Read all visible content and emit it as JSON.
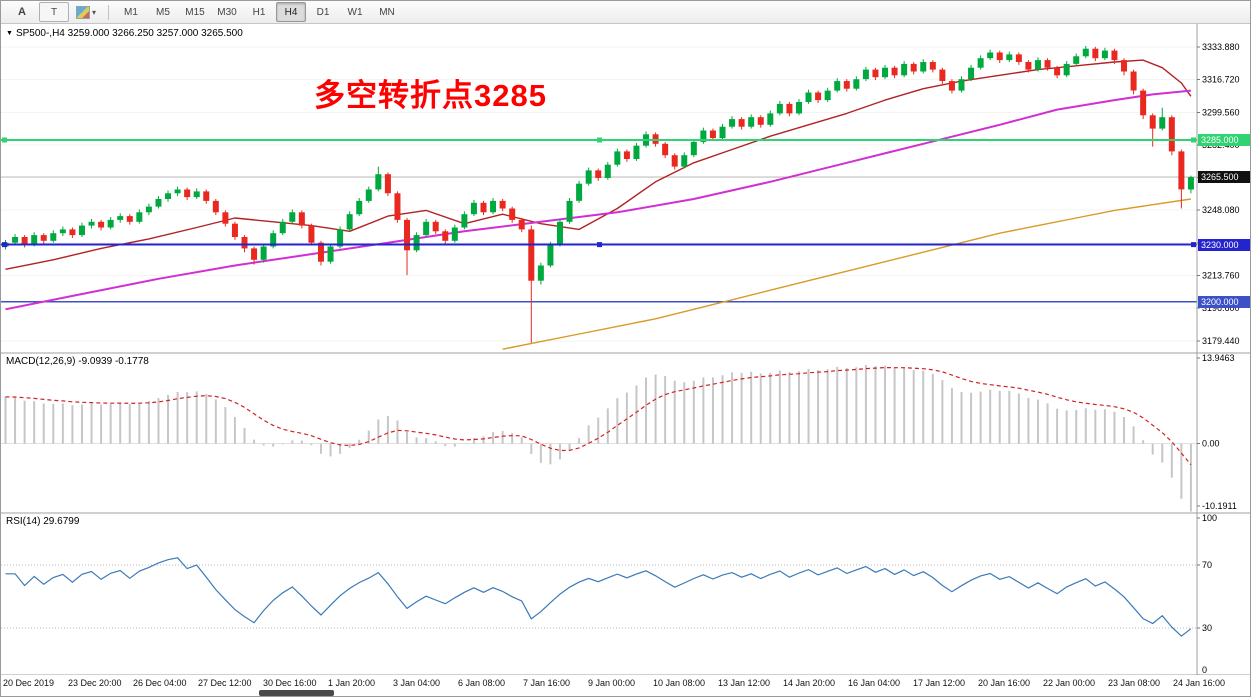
{
  "toolbar": {
    "buttons": [
      {
        "label": "A"
      },
      {
        "label": "T"
      }
    ],
    "caret": "▾",
    "timeframes": [
      "M1",
      "M5",
      "M15",
      "M30",
      "H1",
      "H4",
      "D1",
      "W1",
      "MN"
    ],
    "active_timeframe": "H4"
  },
  "chart": {
    "collapse_icon": "▼",
    "symbol_info": "SP500-,H4 3259.000 3266.250 3257.000 3265.500",
    "annotation": "多空转折点3285",
    "annotation_color": "#fe0000"
  },
  "indicators": {
    "macd_label": "MACD(12,26,9) -9.0939 -0.1778",
    "rsi_label": "RSI(14) 29.6799"
  },
  "chart_data": {
    "type": "candlestick",
    "symbol": "SP500-",
    "timeframe": "H4",
    "last_bar": {
      "open": 3259.0,
      "high": 3266.25,
      "low": 3257.0,
      "close": 3265.5
    },
    "y_range": [
      3173,
      3346
    ],
    "up_color": "#00a93f",
    "down_color": "#e9281f",
    "y_ticks": [
      "3333.880",
      "3316.720",
      "3299.560",
      "3282.400",
      "3265.240",
      "3248.080",
      "3230.920",
      "3213.760",
      "3196.600",
      "3179.440"
    ],
    "x_labels": [
      "20 Dec 2019",
      "23 Dec 20:00",
      "26 Dec 04:00",
      "27 Dec 12:00",
      "30 Dec 16:00",
      "1 Jan 20:00",
      "3 Jan 04:00",
      "6 Jan 08:00",
      "7 Jan 16:00",
      "9 Jan 00:00",
      "10 Jan 08:00",
      "13 Jan 12:00",
      "14 Jan 20:00",
      "16 Jan 04:00",
      "17 Jan 12:00",
      "20 Jan 16:00",
      "22 Jan 00:00",
      "23 Jan 08:00",
      "24 Jan 16:00"
    ],
    "candles": [
      [
        3229,
        3232.5,
        3227.5,
        3231
      ],
      [
        3231,
        3235.5,
        3230,
        3234
      ],
      [
        3234,
        3235,
        3228.5,
        3230
      ],
      [
        3230,
        3236.5,
        3229,
        3235
      ],
      [
        3235,
        3236,
        3230.5,
        3232
      ],
      [
        3232,
        3237.5,
        3231,
        3236
      ],
      [
        3236,
        3239.5,
        3234.5,
        3238
      ],
      [
        3238,
        3239,
        3233.5,
        3235
      ],
      [
        3235,
        3241.5,
        3234,
        3240
      ],
      [
        3240,
        3243.5,
        3238.5,
        3242
      ],
      [
        3242,
        3243,
        3237.5,
        3239
      ],
      [
        3239,
        3244.5,
        3238,
        3243
      ],
      [
        3243,
        3246.5,
        3241.5,
        3245
      ],
      [
        3245,
        3246,
        3240.5,
        3242
      ],
      [
        3242,
        3248.5,
        3241,
        3247
      ],
      [
        3247,
        3251.5,
        3245.5,
        3250
      ],
      [
        3250,
        3255.5,
        3249,
        3254
      ],
      [
        3254,
        3258.5,
        3252.5,
        3257
      ],
      [
        3257,
        3260.5,
        3255.5,
        3259
      ],
      [
        3259,
        3260,
        3253.5,
        3255
      ],
      [
        3255,
        3259.5,
        3254,
        3258
      ],
      [
        3258,
        3259,
        3251.5,
        3253
      ],
      [
        3253,
        3254,
        3245.5,
        3247
      ],
      [
        3247,
        3248,
        3239.5,
        3241
      ],
      [
        3241,
        3242,
        3232.5,
        3234
      ],
      [
        3234,
        3235,
        3226,
        3228
      ],
      [
        3228,
        3229,
        3219.5,
        3222
      ],
      [
        3222,
        3230.5,
        3220.5,
        3229
      ],
      [
        3229,
        3237.5,
        3228,
        3236
      ],
      [
        3236,
        3243.5,
        3235,
        3242
      ],
      [
        3242,
        3248.5,
        3241,
        3247
      ],
      [
        3247,
        3248,
        3238.5,
        3240
      ],
      [
        3240,
        3241,
        3229.5,
        3231
      ],
      [
        3231,
        3232,
        3219,
        3221
      ],
      [
        3221,
        3230.5,
        3220,
        3229
      ],
      [
        3229,
        3239.5,
        3228,
        3238
      ],
      [
        3238,
        3247.5,
        3237,
        3246
      ],
      [
        3246,
        3254.5,
        3245,
        3253
      ],
      [
        3253,
        3260.5,
        3252,
        3259
      ],
      [
        3259,
        3271,
        3258,
        3267
      ],
      [
        3267,
        3268,
        3255.5,
        3257
      ],
      [
        3257,
        3258,
        3241.5,
        3243
      ],
      [
        3243,
        3244,
        3214,
        3227
      ],
      [
        3227,
        3236.5,
        3226,
        3235
      ],
      [
        3235,
        3243.5,
        3234,
        3242
      ],
      [
        3242,
        3243,
        3235.5,
        3237
      ],
      [
        3237,
        3238,
        3230.5,
        3232
      ],
      [
        3232,
        3240.5,
        3231,
        3239
      ],
      [
        3239,
        3247.5,
        3238,
        3246
      ],
      [
        3246,
        3253.5,
        3245,
        3252
      ],
      [
        3252,
        3253,
        3245.5,
        3247
      ],
      [
        3247,
        3254.5,
        3246,
        3253
      ],
      [
        3253,
        3254,
        3247.5,
        3249
      ],
      [
        3249,
        3250,
        3241.5,
        3243
      ],
      [
        3243,
        3244,
        3236.5,
        3238
      ],
      [
        3238,
        3240,
        3178.4,
        3211
      ],
      [
        3211,
        3220.5,
        3209,
        3219
      ],
      [
        3219,
        3231.5,
        3218,
        3230
      ],
      [
        3230,
        3243.5,
        3229,
        3242
      ],
      [
        3242,
        3254.5,
        3241,
        3253
      ],
      [
        3253,
        3263.5,
        3252,
        3262
      ],
      [
        3262,
        3270.5,
        3261,
        3269
      ],
      [
        3269,
        3270,
        3263.5,
        3265
      ],
      [
        3265,
        3273.5,
        3264,
        3272
      ],
      [
        3272,
        3280.5,
        3271,
        3279
      ],
      [
        3279,
        3280,
        3273.5,
        3275
      ],
      [
        3275,
        3283.5,
        3274,
        3282
      ],
      [
        3282,
        3289.5,
        3281,
        3288
      ],
      [
        3288,
        3289,
        3281.5,
        3283
      ],
      [
        3283,
        3284,
        3275.5,
        3277
      ],
      [
        3277,
        3278,
        3269.5,
        3271
      ],
      [
        3271,
        3278.5,
        3270,
        3277
      ],
      [
        3277,
        3285.5,
        3276,
        3284
      ],
      [
        3284,
        3291.5,
        3283,
        3290
      ],
      [
        3290,
        3291,
        3284.5,
        3286
      ],
      [
        3286,
        3293.5,
        3285,
        3292
      ],
      [
        3292,
        3297.5,
        3291,
        3296
      ],
      [
        3296,
        3297,
        3290.5,
        3292
      ],
      [
        3292,
        3298.5,
        3291,
        3297
      ],
      [
        3297,
        3298,
        3291.5,
        3293
      ],
      [
        3293,
        3300.5,
        3292,
        3299
      ],
      [
        3299,
        3305.5,
        3298,
        3304
      ],
      [
        3304,
        3305,
        3297.5,
        3299
      ],
      [
        3299,
        3306.5,
        3298,
        3305
      ],
      [
        3305,
        3311.5,
        3304,
        3310
      ],
      [
        3310,
        3311,
        3304.5,
        3306
      ],
      [
        3306,
        3312.5,
        3305,
        3311
      ],
      [
        3311,
        3317.5,
        3310,
        3316
      ],
      [
        3316,
        3317,
        3310.5,
        3312
      ],
      [
        3312,
        3318.5,
        3311,
        3317
      ],
      [
        3317,
        3323.5,
        3316,
        3322
      ],
      [
        3322,
        3323,
        3316.5,
        3318
      ],
      [
        3318,
        3324.5,
        3317,
        3323
      ],
      [
        3323,
        3324,
        3317.5,
        3319
      ],
      [
        3319,
        3326.5,
        3318,
        3325
      ],
      [
        3325,
        3326,
        3319.5,
        3321
      ],
      [
        3321,
        3327.5,
        3320,
        3326
      ],
      [
        3326,
        3327,
        3320.5,
        3322
      ],
      [
        3322,
        3323,
        3314.5,
        3316
      ],
      [
        3316,
        3317,
        3309.5,
        3311
      ],
      [
        3311,
        3318.5,
        3310,
        3317
      ],
      [
        3317,
        3324.5,
        3316,
        3323
      ],
      [
        3323,
        3329.5,
        3322,
        3328
      ],
      [
        3328,
        3332.5,
        3327,
        3331
      ],
      [
        3331,
        3332,
        3325.5,
        3327
      ],
      [
        3327,
        3331.5,
        3326,
        3330
      ],
      [
        3330,
        3331,
        3324.5,
        3326
      ],
      [
        3326,
        3327,
        3320.5,
        3322
      ],
      [
        3322,
        3328.5,
        3321,
        3327
      ],
      [
        3327,
        3328,
        3321.5,
        3323
      ],
      [
        3323,
        3324,
        3317.5,
        3319
      ],
      [
        3319,
        3326.5,
        3318,
        3325
      ],
      [
        3325,
        3330.5,
        3324,
        3329
      ],
      [
        3329,
        3334.5,
        3328,
        3333
      ],
      [
        3333,
        3334,
        3326.5,
        3328
      ],
      [
        3328,
        3333.5,
        3327,
        3332
      ],
      [
        3332,
        3333,
        3325,
        3327
      ],
      [
        3327,
        3328,
        3319,
        3321
      ],
      [
        3321,
        3322,
        3309,
        3311
      ],
      [
        3311,
        3312,
        3296,
        3298
      ],
      [
        3298,
        3299,
        3281.5,
        3291
      ],
      [
        3291,
        3302,
        3290,
        3297
      ],
      [
        3297,
        3298,
        3277,
        3279
      ],
      [
        3279,
        3280,
        3249,
        3259
      ],
      [
        3259,
        3266.25,
        3257,
        3265.5
      ]
    ],
    "moving_averages": [
      {
        "name": "ma-fast",
        "color": "#b22222",
        "width": 1.4,
        "points": [
          [
            0,
            3217
          ],
          [
            5,
            3222
          ],
          [
            10,
            3228
          ],
          [
            15,
            3233
          ],
          [
            20,
            3239
          ],
          [
            24,
            3244
          ],
          [
            28,
            3242
          ],
          [
            32,
            3240
          ],
          [
            36,
            3237
          ],
          [
            40,
            3245
          ],
          [
            44,
            3248
          ],
          [
            48,
            3241
          ],
          [
            52,
            3246
          ],
          [
            56,
            3241
          ],
          [
            60,
            3238
          ],
          [
            64,
            3249
          ],
          [
            68,
            3263
          ],
          [
            72,
            3273
          ],
          [
            76,
            3280
          ],
          [
            80,
            3287
          ],
          [
            84,
            3293
          ],
          [
            88,
            3299
          ],
          [
            92,
            3306
          ],
          [
            96,
            3312
          ],
          [
            100,
            3316
          ],
          [
            104,
            3319
          ],
          [
            108,
            3322
          ],
          [
            112,
            3324
          ],
          [
            116,
            3326
          ],
          [
            119,
            3327
          ],
          [
            121,
            3323
          ],
          [
            123,
            3315
          ],
          [
            124,
            3308
          ]
        ]
      },
      {
        "name": "ma-mid",
        "color": "#d12fd1",
        "width": 2,
        "points": [
          [
            0,
            3196
          ],
          [
            8,
            3204
          ],
          [
            16,
            3212
          ],
          [
            24,
            3219
          ],
          [
            32,
            3225
          ],
          [
            40,
            3231
          ],
          [
            48,
            3237
          ],
          [
            56,
            3242
          ],
          [
            64,
            3247
          ],
          [
            72,
            3254
          ],
          [
            80,
            3263
          ],
          [
            88,
            3273
          ],
          [
            96,
            3283
          ],
          [
            104,
            3293
          ],
          [
            110,
            3301
          ],
          [
            116,
            3306
          ],
          [
            120,
            3309
          ],
          [
            124,
            3311
          ]
        ]
      },
      {
        "name": "ma-slow",
        "color": "#d99a26",
        "width": 1.4,
        "points": [
          [
            52,
            3175
          ],
          [
            56,
            3179
          ],
          [
            60,
            3183
          ],
          [
            64,
            3187
          ],
          [
            68,
            3191
          ],
          [
            72,
            3196
          ],
          [
            76,
            3201
          ],
          [
            80,
            3206
          ],
          [
            84,
            3211
          ],
          [
            88,
            3216
          ],
          [
            92,
            3221
          ],
          [
            96,
            3226
          ],
          [
            100,
            3231
          ],
          [
            104,
            3236
          ],
          [
            108,
            3240
          ],
          [
            112,
            3244
          ],
          [
            116,
            3248
          ],
          [
            120,
            3251
          ],
          [
            124,
            3254
          ]
        ]
      }
    ],
    "horizontal_lines": [
      {
        "name": "resistance-3285",
        "label": "3285.000",
        "value": 3285.0,
        "color": "#2fd36f",
        "width": 2,
        "handles": true
      },
      {
        "name": "support-3230",
        "label": "3230.000",
        "value": 3230.0,
        "color": "#2424cf",
        "width": 2,
        "handles": true
      },
      {
        "name": "support-3200",
        "label": "3200.000",
        "value": 3200.0,
        "color": "#3c50c8",
        "width": 1.5,
        "handles": false
      }
    ],
    "bid_line": {
      "value": 3265.5,
      "label": "3265.500",
      "color": "#bcbcbc",
      "badge_color": "#111111"
    },
    "macd": {
      "params": "12,26,9",
      "value": -9.0939,
      "signal_value": -0.1778,
      "histogram_color": "#c6c6c6",
      "signal_color": "#d42222",
      "ticks": [
        {
          "value": 13.9463,
          "label": "13.9463"
        },
        {
          "value": 0,
          "label": "0.00"
        },
        {
          "value": -10.1911,
          "label": "-10.1911"
        }
      ]
    },
    "rsi": {
      "period": 14,
      "value": 29.6799,
      "color": "#3a7ab8",
      "levels": [
        70,
        30
      ],
      "ticks": [
        {
          "value": 100,
          "label": "100"
        },
        {
          "value": 70,
          "label": "70"
        },
        {
          "value": 30,
          "label": "30"
        },
        {
          "value": 0,
          "label": "0"
        }
      ]
    }
  }
}
